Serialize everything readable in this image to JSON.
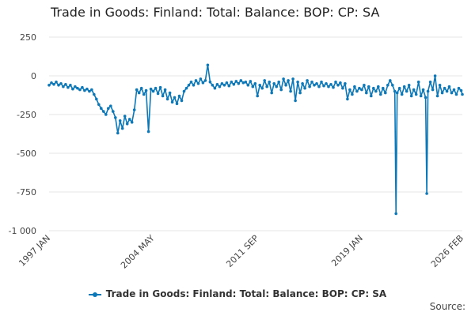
{
  "title": "Trade in Goods: Finland: Total: Balance: BOP: CP: SA",
  "source_label": "Source:",
  "colors": {
    "series": "#0d78b8",
    "grid": "#e6e6e6",
    "axis": "#444444"
  },
  "chart_data": {
    "type": "line",
    "title": "Trade in Goods: Finland: Total: Balance: BOP: CP: SA",
    "xlabel": "",
    "ylabel": "",
    "x_tick_labels": [
      "1997 JAN",
      "2004 MAY",
      "2011 SEP",
      "2019 JAN",
      "2026 FEB"
    ],
    "x_tick_dates": [
      "1997-01",
      "2004-05",
      "2011-09",
      "2019-01",
      "2026-02"
    ],
    "xlim": [
      "1997-01",
      "2026-02"
    ],
    "y_ticks": [
      250,
      0,
      -250,
      -500,
      -750,
      -1000
    ],
    "y_tick_labels": [
      "250",
      "0",
      "-250",
      "-500",
      "-750",
      "-1 000"
    ],
    "ylim": [
      -1000,
      250
    ],
    "grid": "horizontal",
    "legend_position": "bottom",
    "series": [
      {
        "name": "Trade in Goods: Finland: Total: Balance: BOP: CP: SA",
        "color": "#0d78b8",
        "points": [
          [
            "1997-01",
            -60
          ],
          [
            "1997-03",
            -45
          ],
          [
            "1997-05",
            -55
          ],
          [
            "1997-07",
            -40
          ],
          [
            "1997-09",
            -60
          ],
          [
            "1997-11",
            -50
          ],
          [
            "1998-01",
            -70
          ],
          [
            "1998-03",
            -55
          ],
          [
            "1998-05",
            -75
          ],
          [
            "1998-07",
            -60
          ],
          [
            "1998-09",
            -85
          ],
          [
            "1998-11",
            -70
          ],
          [
            "1999-01",
            -80
          ],
          [
            "1999-03",
            -90
          ],
          [
            "1999-05",
            -75
          ],
          [
            "1999-07",
            -95
          ],
          [
            "1999-09",
            -85
          ],
          [
            "1999-11",
            -100
          ],
          [
            "2000-01",
            -90
          ],
          [
            "2000-03",
            -120
          ],
          [
            "2000-05",
            -150
          ],
          [
            "2000-07",
            -185
          ],
          [
            "2000-09",
            -210
          ],
          [
            "2000-11",
            -230
          ],
          [
            "2001-01",
            -250
          ],
          [
            "2001-03",
            -210
          ],
          [
            "2001-05",
            -195
          ],
          [
            "2001-07",
            -230
          ],
          [
            "2001-09",
            -270
          ],
          [
            "2001-11",
            -370
          ],
          [
            "2002-01",
            -290
          ],
          [
            "2002-03",
            -340
          ],
          [
            "2002-05",
            -260
          ],
          [
            "2002-07",
            -310
          ],
          [
            "2002-09",
            -280
          ],
          [
            "2002-11",
            -300
          ],
          [
            "2003-01",
            -220
          ],
          [
            "2003-03",
            -90
          ],
          [
            "2003-05",
            -110
          ],
          [
            "2003-07",
            -80
          ],
          [
            "2003-09",
            -120
          ],
          [
            "2003-11",
            -95
          ],
          [
            "2004-01",
            -360
          ],
          [
            "2004-03",
            -85
          ],
          [
            "2004-05",
            -100
          ],
          [
            "2004-07",
            -80
          ],
          [
            "2004-09",
            -115
          ],
          [
            "2004-11",
            -75
          ],
          [
            "2005-01",
            -130
          ],
          [
            "2005-03",
            -90
          ],
          [
            "2005-05",
            -150
          ],
          [
            "2005-07",
            -110
          ],
          [
            "2005-09",
            -170
          ],
          [
            "2005-11",
            -140
          ],
          [
            "2006-01",
            -180
          ],
          [
            "2006-03",
            -130
          ],
          [
            "2006-05",
            -160
          ],
          [
            "2006-07",
            -100
          ],
          [
            "2006-09",
            -80
          ],
          [
            "2006-11",
            -60
          ],
          [
            "2007-01",
            -40
          ],
          [
            "2007-03",
            -60
          ],
          [
            "2007-05",
            -30
          ],
          [
            "2007-07",
            -50
          ],
          [
            "2007-09",
            -20
          ],
          [
            "2007-11",
            -45
          ],
          [
            "2008-01",
            -30
          ],
          [
            "2008-03",
            70
          ],
          [
            "2008-05",
            -40
          ],
          [
            "2008-07",
            -60
          ],
          [
            "2008-09",
            -80
          ],
          [
            "2008-11",
            -55
          ],
          [
            "2009-01",
            -70
          ],
          [
            "2009-03",
            -50
          ],
          [
            "2009-05",
            -60
          ],
          [
            "2009-07",
            -45
          ],
          [
            "2009-09",
            -65
          ],
          [
            "2009-11",
            -40
          ],
          [
            "2010-01",
            -55
          ],
          [
            "2010-03",
            -35
          ],
          [
            "2010-05",
            -50
          ],
          [
            "2010-07",
            -30
          ],
          [
            "2010-09",
            -45
          ],
          [
            "2010-11",
            -40
          ],
          [
            "2011-01",
            -60
          ],
          [
            "2011-03",
            -35
          ],
          [
            "2011-05",
            -70
          ],
          [
            "2011-07",
            -50
          ],
          [
            "2011-09",
            -130
          ],
          [
            "2011-11",
            -60
          ],
          [
            "2012-01",
            -80
          ],
          [
            "2012-03",
            -30
          ],
          [
            "2012-05",
            -70
          ],
          [
            "2012-07",
            -40
          ],
          [
            "2012-09",
            -110
          ],
          [
            "2012-11",
            -50
          ],
          [
            "2013-01",
            -70
          ],
          [
            "2013-03",
            -40
          ],
          [
            "2013-05",
            -90
          ],
          [
            "2013-07",
            -20
          ],
          [
            "2013-09",
            -60
          ],
          [
            "2013-11",
            -30
          ],
          [
            "2014-01",
            -100
          ],
          [
            "2014-03",
            -20
          ],
          [
            "2014-05",
            -160
          ],
          [
            "2014-07",
            -40
          ],
          [
            "2014-09",
            -110
          ],
          [
            "2014-11",
            -50
          ],
          [
            "2015-01",
            -80
          ],
          [
            "2015-03",
            -30
          ],
          [
            "2015-05",
            -70
          ],
          [
            "2015-07",
            -40
          ],
          [
            "2015-09",
            -60
          ],
          [
            "2015-11",
            -50
          ],
          [
            "2016-01",
            -70
          ],
          [
            "2016-03",
            -40
          ],
          [
            "2016-05",
            -65
          ],
          [
            "2016-07",
            -50
          ],
          [
            "2016-09",
            -70
          ],
          [
            "2016-11",
            -55
          ],
          [
            "2017-01",
            -75
          ],
          [
            "2017-03",
            -40
          ],
          [
            "2017-05",
            -60
          ],
          [
            "2017-07",
            -45
          ],
          [
            "2017-09",
            -80
          ],
          [
            "2017-11",
            -50
          ],
          [
            "2018-01",
            -150
          ],
          [
            "2018-03",
            -90
          ],
          [
            "2018-05",
            -120
          ],
          [
            "2018-07",
            -70
          ],
          [
            "2018-09",
            -100
          ],
          [
            "2018-11",
            -80
          ],
          [
            "2019-01",
            -90
          ],
          [
            "2019-03",
            -60
          ],
          [
            "2019-05",
            -110
          ],
          [
            "2019-07",
            -70
          ],
          [
            "2019-09",
            -130
          ],
          [
            "2019-11",
            -80
          ],
          [
            "2020-01",
            -100
          ],
          [
            "2020-03",
            -70
          ],
          [
            "2020-05",
            -120
          ],
          [
            "2020-07",
            -80
          ],
          [
            "2020-09",
            -110
          ],
          [
            "2020-11",
            -60
          ],
          [
            "2021-01",
            -30
          ],
          [
            "2021-03",
            -60
          ],
          [
            "2021-05",
            -100
          ],
          [
            "2021-06",
            -890
          ],
          [
            "2021-07",
            -110
          ],
          [
            "2021-09",
            -80
          ],
          [
            "2021-11",
            -120
          ],
          [
            "2022-01",
            -70
          ],
          [
            "2022-03",
            -100
          ],
          [
            "2022-05",
            -60
          ],
          [
            "2022-07",
            -130
          ],
          [
            "2022-09",
            -90
          ],
          [
            "2022-11",
            -120
          ],
          [
            "2023-01",
            -40
          ],
          [
            "2023-03",
            -130
          ],
          [
            "2023-05",
            -90
          ],
          [
            "2023-07",
            -140
          ],
          [
            "2023-08",
            -760
          ],
          [
            "2023-09",
            -100
          ],
          [
            "2023-11",
            -40
          ],
          [
            "2024-01",
            -90
          ],
          [
            "2024-03",
            0
          ],
          [
            "2024-05",
            -130
          ],
          [
            "2024-07",
            -60
          ],
          [
            "2024-09",
            -110
          ],
          [
            "2024-11",
            -80
          ],
          [
            "2025-01",
            -100
          ],
          [
            "2025-03",
            -70
          ],
          [
            "2025-05",
            -110
          ],
          [
            "2025-07",
            -90
          ],
          [
            "2025-09",
            -120
          ],
          [
            "2025-11",
            -80
          ],
          [
            "2026-01",
            -95
          ],
          [
            "2026-02",
            -120
          ]
        ]
      }
    ]
  }
}
